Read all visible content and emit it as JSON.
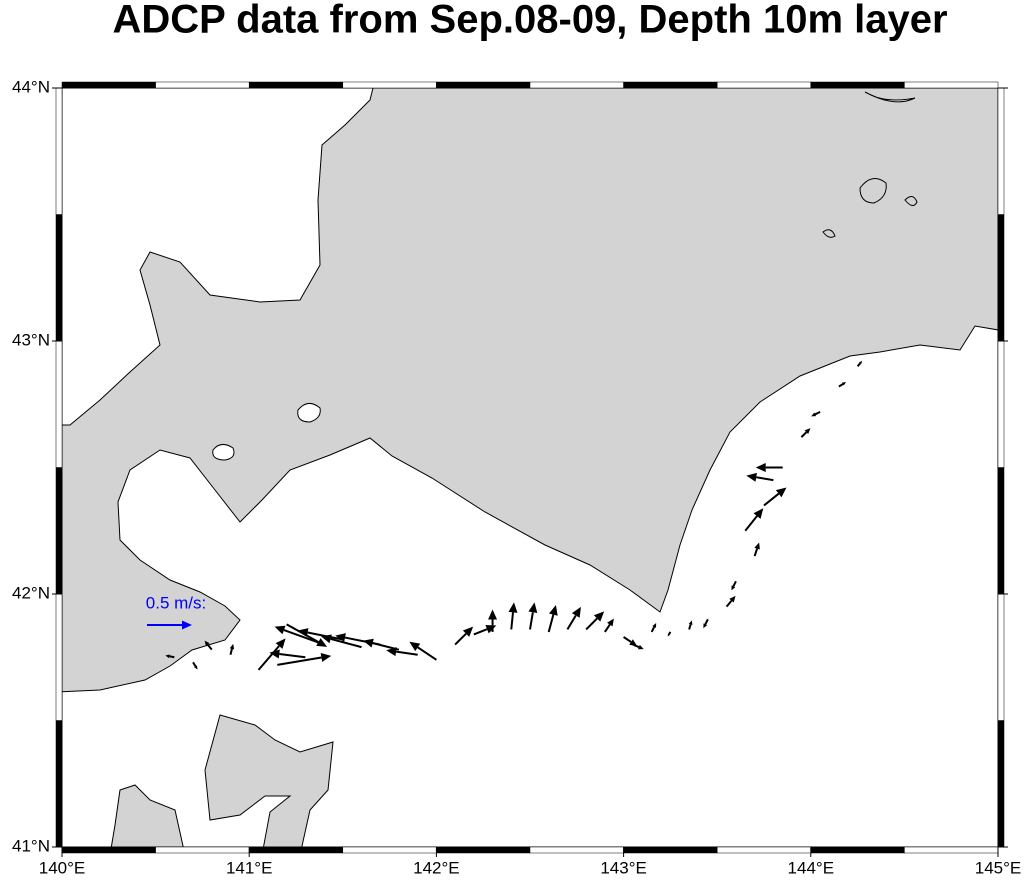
{
  "chart_data": {
    "type": "vector_map",
    "title": "ADCP data from Sep.08-09, Depth 10m layer",
    "xlim": [
      140,
      145
    ],
    "ylim": [
      41,
      44
    ],
    "xticks": [
      {
        "value": 140,
        "label": "140°E"
      },
      {
        "value": 141,
        "label": "141°E"
      },
      {
        "value": 142,
        "label": "142°E"
      },
      {
        "value": 143,
        "label": "143°E"
      },
      {
        "value": 144,
        "label": "144°E"
      },
      {
        "value": 145,
        "label": "145°E"
      }
    ],
    "yticks": [
      {
        "value": 41,
        "label": "41°N"
      },
      {
        "value": 42,
        "label": "42°N"
      },
      {
        "value": 43,
        "label": "43°N"
      },
      {
        "value": 44,
        "label": "44°N"
      }
    ],
    "scale_label": "0.5 m/s:",
    "scale_value": 0.5,
    "scale_color": "#0000ff",
    "color": "#000000",
    "vectors": {
      "lon": [
        140.6,
        140.7,
        140.8,
        140.9,
        141.05,
        141.15,
        141.2,
        141.3,
        141.4,
        141.5,
        141.6,
        141.7,
        141.8,
        141.9,
        142.0,
        142.1,
        142.2,
        142.3,
        142.4,
        142.5,
        142.6,
        142.7,
        142.8,
        142.9,
        143.0,
        143.05,
        143.15,
        143.25,
        143.35,
        143.45,
        143.55,
        143.6,
        143.7,
        143.65,
        143.75,
        143.8,
        143.85,
        143.95,
        144.05,
        144.15,
        144.25
      ],
      "lat": [
        41.75,
        41.73,
        41.78,
        41.76,
        41.7,
        41.72,
        41.88,
        41.75,
        41.8,
        41.82,
        41.79,
        41.8,
        41.78,
        41.76,
        41.74,
        41.8,
        41.84,
        41.85,
        41.86,
        41.86,
        41.85,
        41.86,
        41.86,
        41.85,
        41.83,
        41.8,
        41.85,
        41.85,
        41.86,
        41.9,
        41.95,
        42.05,
        42.15,
        42.25,
        42.35,
        42.45,
        42.5,
        42.62,
        42.72,
        42.82,
        42.9
      ],
      "u": [
        -0.1,
        0.05,
        -0.08,
        0.03,
        0.3,
        0.6,
        0.45,
        -0.4,
        -0.55,
        -0.5,
        -0.45,
        -0.5,
        -0.4,
        -0.35,
        -0.3,
        0.2,
        0.25,
        0.0,
        0.03,
        0.05,
        0.08,
        0.15,
        0.2,
        0.1,
        0.15,
        0.12,
        0.05,
        -0.03,
        0.03,
        -0.05,
        0.1,
        -0.05,
        0.05,
        0.2,
        0.25,
        -0.3,
        -0.3,
        0.1,
        -0.1,
        0.08,
        0.05
      ],
      "v": [
        0.02,
        -0.08,
        0.1,
        0.12,
        0.35,
        0.1,
        -0.25,
        0.05,
        0.2,
        0.1,
        0.12,
        0.1,
        0.1,
        0.05,
        0.2,
        0.2,
        0.1,
        0.25,
        0.3,
        0.3,
        0.3,
        0.25,
        0.2,
        0.15,
        -0.1,
        -0.05,
        0.1,
        -0.05,
        0.1,
        -0.1,
        0.12,
        -0.1,
        0.15,
        0.25,
        0.2,
        0.05,
        0.0,
        0.1,
        -0.05,
        0.05,
        0.06
      ]
    }
  }
}
